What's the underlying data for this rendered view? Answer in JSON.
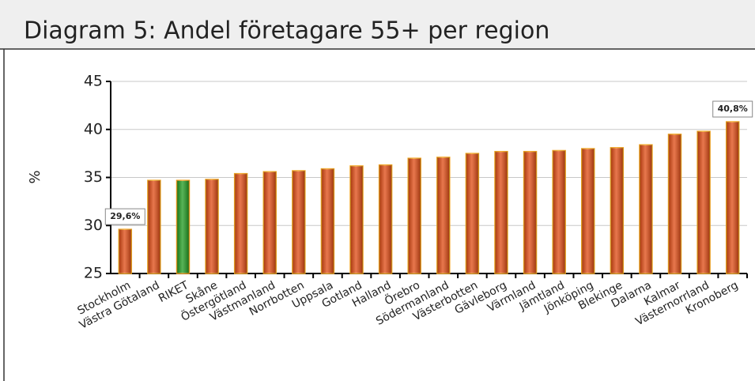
{
  "chart_data": {
    "type": "bar",
    "title": "Diagram 5: Andel företagare 55+ per region",
    "y_label": "%",
    "categories": [
      "Stockholm",
      "Västra Götaland",
      "RIKET",
      "Skåne",
      "Östergötland",
      "Västmanland",
      "Norrbotten",
      "Uppsala",
      "Gotland",
      "Halland",
      "Örebro",
      "Södermanland",
      "Västerbotten",
      "Gävleborg",
      "Värmland",
      "Jämtland",
      "Jönköping",
      "Blekinge",
      "Dalarna",
      "Kalmar",
      "Västernorrland",
      "Kronoberg"
    ],
    "values": [
      29.6,
      34.7,
      34.7,
      34.8,
      35.4,
      35.6,
      35.7,
      35.9,
      36.2,
      36.3,
      37.0,
      37.1,
      37.5,
      37.7,
      37.7,
      37.8,
      38.0,
      38.1,
      38.4,
      39.5,
      39.8,
      40.8
    ],
    "value_labels": [
      "29,6%",
      null,
      null,
      null,
      null,
      null,
      null,
      null,
      null,
      null,
      null,
      null,
      null,
      null,
      null,
      null,
      null,
      null,
      null,
      null,
      null,
      "40,8%"
    ],
    "colors": [
      "#e04a12",
      "#e04a12",
      "#1f9a1f",
      "#e04a12",
      "#e04a12",
      "#e04a12",
      "#e04a12",
      "#e04a12",
      "#e04a12",
      "#e04a12",
      "#e04a12",
      "#e04a12",
      "#e04a12",
      "#e04a12",
      "#e04a12",
      "#e04a12",
      "#e04a12",
      "#e04a12",
      "#e04a12",
      "#e04a12",
      "#e04a12",
      "#e04a12"
    ],
    "ylim": [
      25,
      45
    ],
    "yticks": [
      25,
      30,
      35,
      40,
      45
    ],
    "grid": true
  }
}
